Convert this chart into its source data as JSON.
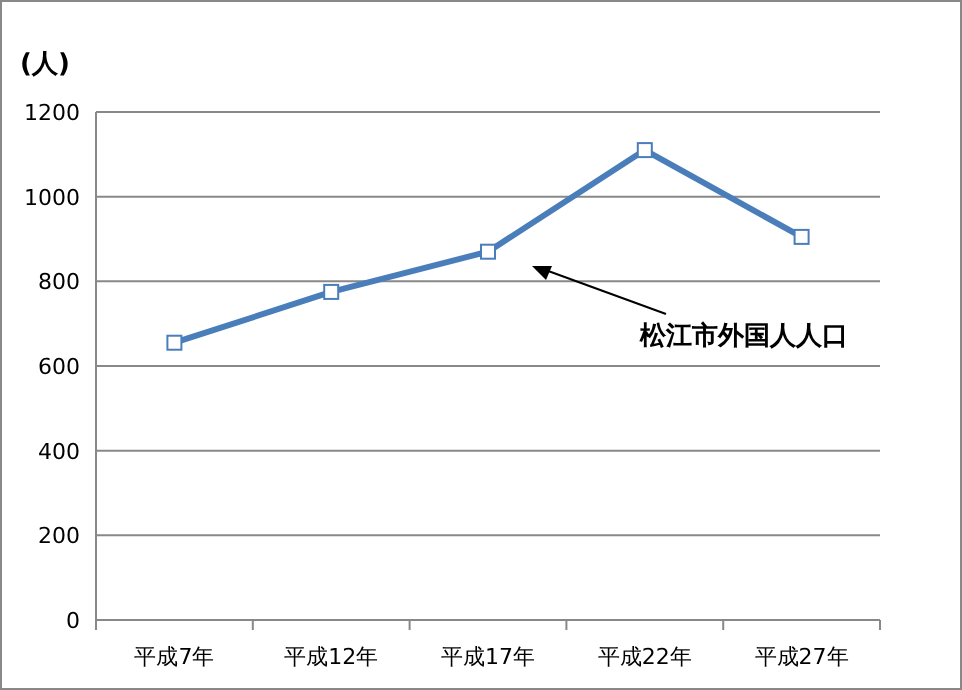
{
  "chart_data": {
    "type": "line",
    "ylabel": "(人)",
    "categories": [
      "平成7年",
      "平成12年",
      "平成17年",
      "平成22年",
      "平成27年"
    ],
    "series": [
      {
        "color": "#4a7ebb",
        "values": [
          655,
          775,
          870,
          1110,
          905
        ]
      }
    ],
    "ylim": [
      0,
      1200
    ],
    "yticks": [
      0,
      200,
      400,
      600,
      800,
      1000,
      1200
    ],
    "grid": "y",
    "marker": "square",
    "line_style": "solid",
    "annotations": [
      "松江市外国人人口"
    ]
  }
}
